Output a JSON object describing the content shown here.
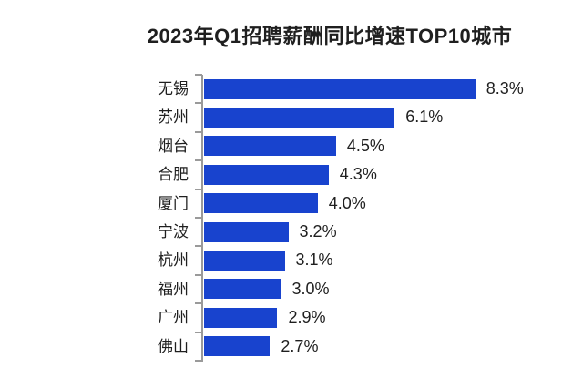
{
  "chart_data": {
    "type": "bar",
    "orientation": "horizontal",
    "title": "2023年Q1招聘薪酬同比增速TOP10城市",
    "categories": [
      "无锡",
      "苏州",
      "烟台",
      "合肥",
      "厦门",
      "宁波",
      "杭州",
      "福州",
      "广州",
      "佛山"
    ],
    "values": [
      8.3,
      6.1,
      4.5,
      4.3,
      4.0,
      3.2,
      3.1,
      3.0,
      2.9,
      2.7
    ],
    "value_labels": [
      "8.3%",
      "6.1%",
      "4.5%",
      "4.3%",
      "4.0%",
      "3.2%",
      "3.1%",
      "3.0%",
      "2.9%",
      "2.7%"
    ],
    "unit": "%",
    "xlabel": "",
    "ylabel": "",
    "xlim": [
      0.9,
      9.3
    ],
    "grid": false,
    "legend": false,
    "data_labels": true,
    "bar_color": "#1843ce",
    "axis_color": "#9a9a9a",
    "text_color": "#1f1f1f",
    "background_color": "#ffffff"
  }
}
